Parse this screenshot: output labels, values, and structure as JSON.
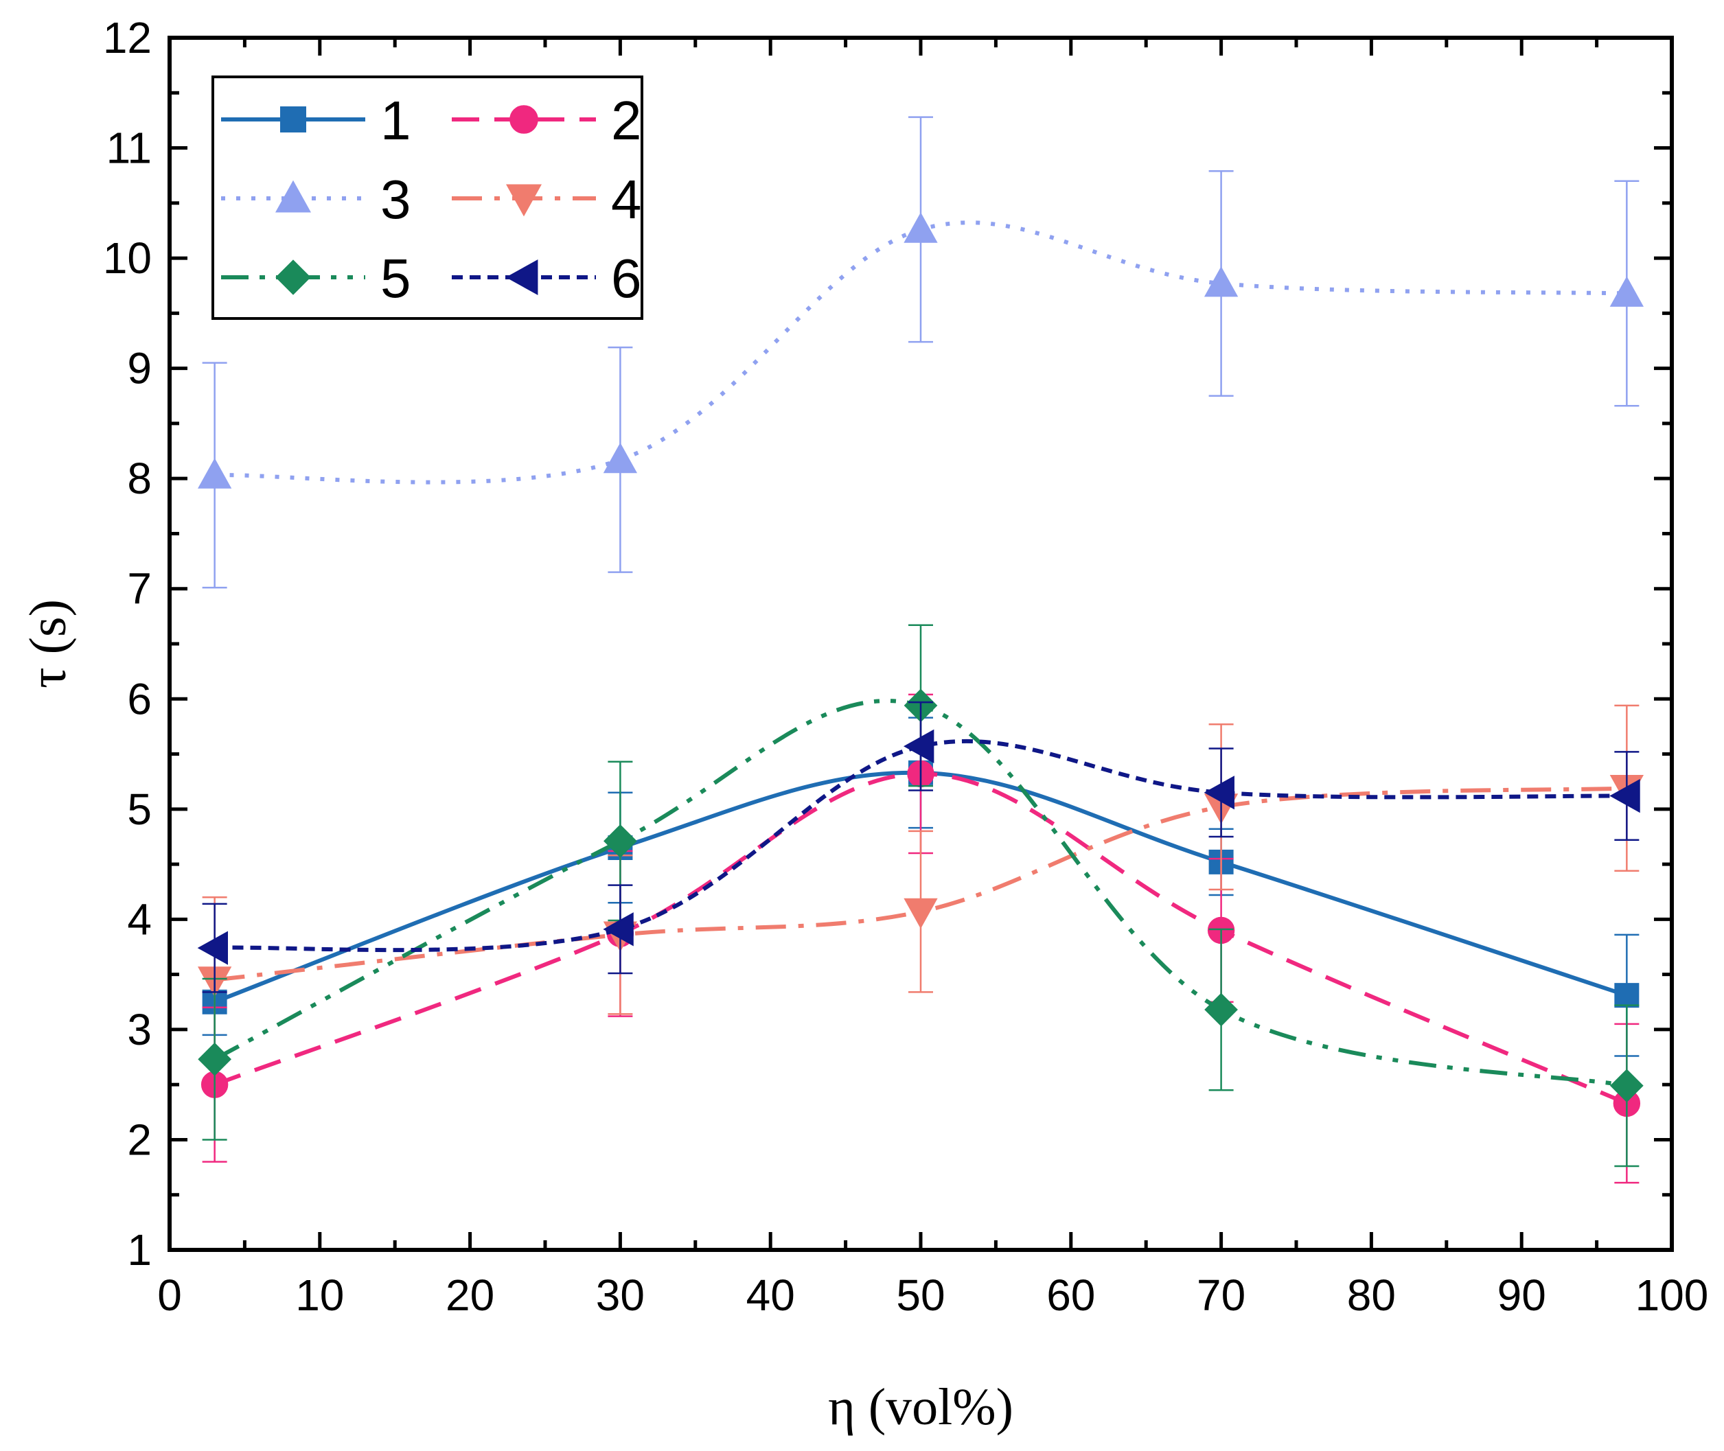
{
  "chart_data": {
    "type": "line",
    "title": "",
    "xlabel": "η (vol%)",
    "ylabel": "τ (s)",
    "xlim": [
      0,
      100
    ],
    "ylim": [
      1,
      12
    ],
    "xticks": [
      0,
      10,
      20,
      30,
      40,
      50,
      60,
      70,
      80,
      90,
      100
    ],
    "yticks": [
      1,
      2,
      3,
      4,
      5,
      6,
      7,
      8,
      9,
      10,
      11,
      12
    ],
    "x": [
      3,
      30,
      50,
      70,
      97
    ],
    "legend_position": "top-left",
    "series": [
      {
        "name": "1",
        "color": "#1f6db3",
        "marker": "square",
        "dash": "solid",
        "values": [
          3.25,
          4.65,
          5.33,
          4.52,
          3.31
        ],
        "errors": [
          0.3,
          0.5,
          0.5,
          0.3,
          0.55
        ]
      },
      {
        "name": "2",
        "color": "#f0287f",
        "marker": "circle",
        "dash": "dash",
        "values": [
          2.5,
          3.87,
          5.32,
          3.9,
          2.33
        ],
        "errors": [
          0.7,
          0.75,
          0.72,
          0.65,
          0.72
        ]
      },
      {
        "name": "3",
        "color": "#8fa1f0",
        "marker": "triangle-up",
        "dash": "dot",
        "values": [
          8.03,
          8.17,
          10.26,
          9.77,
          9.68
        ],
        "errors": [
          1.02,
          1.02,
          1.02,
          1.02,
          1.02
        ]
      },
      {
        "name": "4",
        "color": "#f07c6e",
        "marker": "triangle-down",
        "dash": "dashdot",
        "values": [
          3.45,
          3.86,
          4.07,
          5.02,
          5.19
        ],
        "errors": [
          0.75,
          0.72,
          0.73,
          0.75,
          0.75
        ]
      },
      {
        "name": "5",
        "color": "#1a8a5a",
        "marker": "diamond",
        "dash": "dashdotdot",
        "values": [
          2.73,
          4.71,
          5.94,
          3.18,
          2.49
        ],
        "errors": [
          0.73,
          0.72,
          0.73,
          0.73,
          0.73
        ]
      },
      {
        "name": "6",
        "color": "#0f1787",
        "marker": "triangle-left",
        "dash": "shortdash",
        "values": [
          3.74,
          3.91,
          5.57,
          5.15,
          5.12
        ],
        "errors": [
          0.4,
          0.4,
          0.4,
          0.4,
          0.4
        ]
      }
    ]
  }
}
